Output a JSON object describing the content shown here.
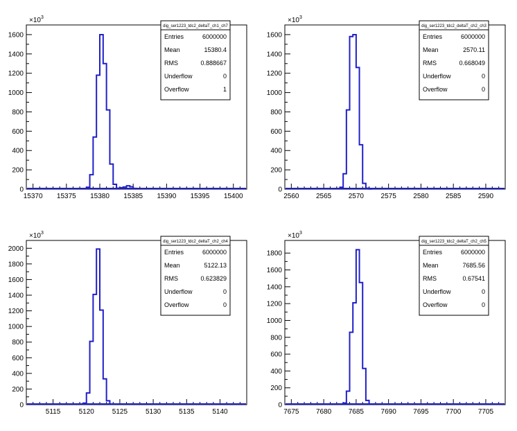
{
  "chart_data": [
    {
      "type": "histogram",
      "stats": {
        "title": "dig_ser1223_tdc2_deltaT_ch1_ch7",
        "rows": [
          {
            "label": "Entries",
            "value": "6000000"
          },
          {
            "label": "Mean",
            "value": "15380.4"
          },
          {
            "label": "RMS",
            "value": "0.888667"
          },
          {
            "label": "Underflow",
            "value": "0"
          },
          {
            "label": "Overflow",
            "value": "1"
          }
        ]
      },
      "xlim": [
        15369,
        15402
      ],
      "ylim": [
        0,
        1700
      ],
      "y_exponent_label": "×10",
      "y_exponent": "3",
      "xticks": [
        15370,
        15375,
        15380,
        15385,
        15390,
        15395,
        15400
      ],
      "yticks": [
        0,
        200,
        400,
        600,
        800,
        1000,
        1200,
        1400,
        1600
      ],
      "bin_width": 0.5,
      "bin_edges": [
        15378,
        15378.5,
        15379,
        15379.5,
        15380,
        15380.5,
        15381,
        15381.5,
        15382,
        15382.5,
        15383,
        15383.5,
        15384,
        15384.5,
        15385,
        15385.5
      ],
      "bin_values": [
        20,
        150,
        540,
        1180,
        1600,
        1300,
        820,
        260,
        50,
        10,
        15,
        22,
        35,
        25,
        8
      ]
    },
    {
      "type": "histogram",
      "stats": {
        "title": "dig_ser1223_tdc2_deltaT_ch2_ch3",
        "rows": [
          {
            "label": "Entries",
            "value": "6000000"
          },
          {
            "label": "Mean",
            "value": "2570.11"
          },
          {
            "label": "RMS",
            "value": "0.668049"
          },
          {
            "label": "Underflow",
            "value": "0"
          },
          {
            "label": "Overflow",
            "value": "0"
          }
        ]
      },
      "xlim": [
        2559,
        2593
      ],
      "ylim": [
        0,
        1700
      ],
      "y_exponent_label": "×10",
      "y_exponent": "3",
      "xticks": [
        2560,
        2565,
        2570,
        2575,
        2580,
        2585,
        2590
      ],
      "yticks": [
        0,
        200,
        400,
        600,
        800,
        1000,
        1200,
        1400,
        1600
      ],
      "bin_width": 0.5,
      "bin_edges": [
        2567.5,
        2568,
        2568.5,
        2569,
        2569.5,
        2570,
        2570.5,
        2571,
        2571.5,
        2572,
        2572.5
      ],
      "bin_values": [
        20,
        160,
        820,
        1580,
        1600,
        1260,
        460,
        60,
        10,
        2
      ]
    },
    {
      "type": "histogram",
      "stats": {
        "title": "dig_ser1223_tdc2_deltaT_ch2_ch4",
        "rows": [
          {
            "label": "Entries",
            "value": "6000000"
          },
          {
            "label": "Mean",
            "value": "5122.13"
          },
          {
            "label": "RMS",
            "value": "0.623829"
          },
          {
            "label": "Underflow",
            "value": "0"
          },
          {
            "label": "Overflow",
            "value": "0"
          }
        ]
      },
      "xlim": [
        5111,
        5144
      ],
      "ylim": [
        0,
        2100
      ],
      "y_exponent_label": "×10",
      "y_exponent": "3",
      "xticks": [
        5115,
        5120,
        5125,
        5130,
        5135,
        5140
      ],
      "yticks": [
        0,
        200,
        400,
        600,
        800,
        1000,
        1200,
        1400,
        1600,
        1800,
        2000
      ],
      "bin_width": 0.5,
      "bin_edges": [
        5119.5,
        5120,
        5120.5,
        5121,
        5121.5,
        5122,
        5122.5,
        5123,
        5123.5,
        5124
      ],
      "bin_values": [
        20,
        150,
        810,
        1410,
        1990,
        1210,
        330,
        50,
        8
      ]
    },
    {
      "type": "histogram",
      "stats": {
        "title": "dig_ser1223_tdc2_deltaT_ch2_ch5",
        "rows": [
          {
            "label": "Entries",
            "value": "6000000"
          },
          {
            "label": "Mean",
            "value": "7685.56"
          },
          {
            "label": "RMS",
            "value": "0.67541"
          },
          {
            "label": "Underflow",
            "value": "0"
          },
          {
            "label": "Overflow",
            "value": "0"
          }
        ]
      },
      "xlim": [
        7674,
        7708
      ],
      "ylim": [
        0,
        1950
      ],
      "y_exponent_label": "×10",
      "y_exponent": "3",
      "xticks": [
        7675,
        7680,
        7685,
        7690,
        7695,
        7700,
        7705
      ],
      "yticks": [
        0,
        200,
        400,
        600,
        800,
        1000,
        1200,
        1400,
        1600,
        1800
      ],
      "bin_width": 0.5,
      "bin_edges": [
        7683,
        7683.5,
        7684,
        7684.5,
        7685,
        7685.5,
        7686,
        7686.5,
        7687,
        7687.5
      ],
      "bin_values": [
        20,
        160,
        860,
        1210,
        1840,
        1450,
        430,
        50,
        8
      ]
    }
  ]
}
